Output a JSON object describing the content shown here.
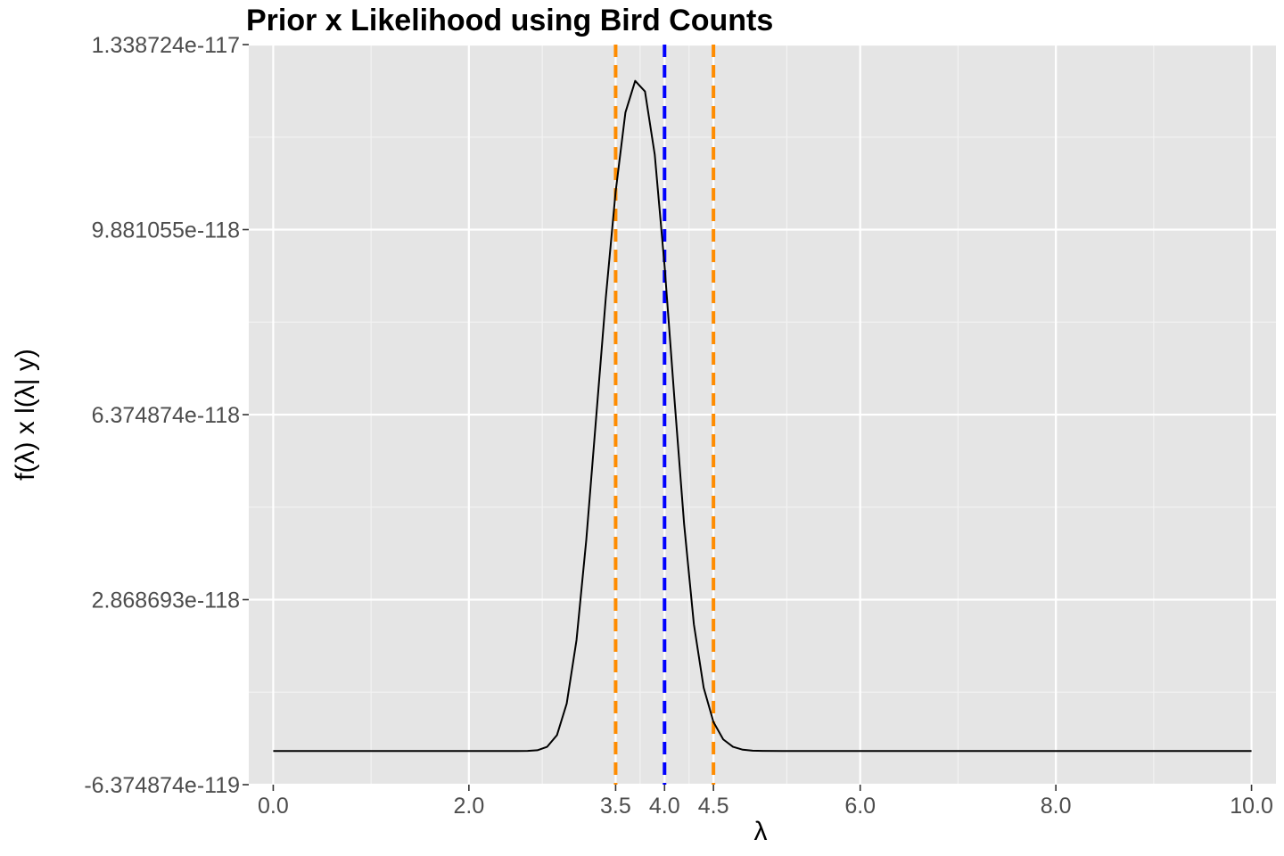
{
  "chart_data": {
    "type": "line",
    "title": "Prior x Likelihood using Bird Counts",
    "xlabel": "λ",
    "ylabel": "f(λ) x l(λ| y)",
    "xlim": [
      -0.25,
      10.25
    ],
    "ylim": [
      -6.374874e-119,
      1.338724e-117
    ],
    "grid": true,
    "legend": "none",
    "x_tick_values": [
      0,
      2,
      3.5,
      4,
      4.5,
      6,
      8,
      10
    ],
    "x_tick_labels": [
      "0.0",
      "2.0",
      "3.5",
      "4.0",
      "4.5",
      "6.0",
      "8.0",
      "10.0"
    ],
    "x_minor_grid": [
      1,
      2.75,
      3.75,
      4.25,
      5.25,
      7,
      9
    ],
    "y_tick_values": [
      -6.374874e-119,
      2.868693e-118,
      6.374874e-118,
      9.881055e-118,
      1.338724e-117
    ],
    "y_tick_labels": [
      "-6.374874e-119",
      "2.868693e-118",
      "6.374874e-118",
      "9.881055e-118",
      "1.338724e-117"
    ],
    "series": [
      {
        "color": "#000000",
        "x": [
          0.0,
          2.5,
          2.6,
          2.7,
          2.8,
          2.9,
          3.0,
          3.1,
          3.2,
          3.3,
          3.4,
          3.5,
          3.6,
          3.7,
          3.8,
          3.9,
          4.0,
          4.1,
          4.2,
          4.3,
          4.4,
          4.5,
          4.6,
          4.7,
          4.8,
          4.9,
          5.0,
          5.2,
          5.5,
          6.0,
          10.0
        ],
        "y": [
          0,
          2e-122,
          2e-121,
          1.5e-120,
          8e-120,
          3e-119,
          9e-119,
          2.1e-118,
          4e-118,
          6.3e-118,
          8.6e-118,
          1.06e-117,
          1.21e-117,
          1.27e-117,
          1.25e-117,
          1.13e-117,
          9.2e-118,
          6.7e-118,
          4.3e-118,
          2.4e-118,
          1.2e-118,
          5.5e-119,
          2.2e-119,
          8e-120,
          2.5e-120,
          7e-121,
          2e-121,
          2e-122,
          0,
          0,
          0
        ]
      }
    ],
    "vlines": [
      {
        "x": 3.5,
        "color": "#ff8c00",
        "style": "dashed"
      },
      {
        "x": 4.0,
        "color": "#0000ff",
        "style": "dashed"
      },
      {
        "x": 4.5,
        "color": "#ff8c00",
        "style": "dashed"
      }
    ]
  }
}
